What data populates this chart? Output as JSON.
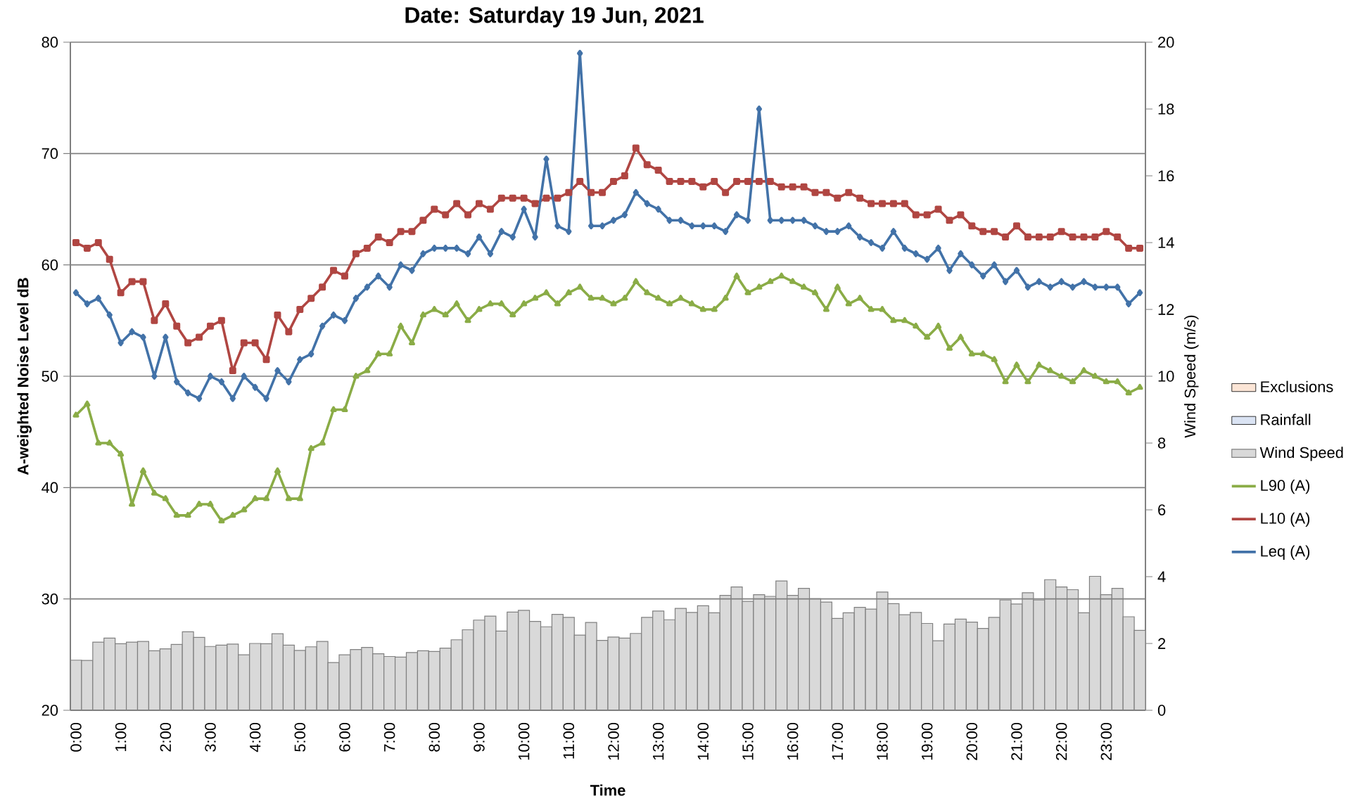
{
  "chart_data": {
    "type": "line",
    "title": "Date: Saturday 19 Jun, 2021",
    "xlabel": "Time",
    "ylabel": "A-weighted Noise Level dB",
    "y2label": "Wind Speed (m/s)",
    "categories": [
      "0:00",
      null,
      null,
      null,
      "1:00",
      null,
      null,
      null,
      "2:00",
      null,
      null,
      null,
      "3:00",
      null,
      null,
      null,
      "4:00",
      null,
      null,
      null,
      "5:00",
      null,
      null,
      null,
      "6:00",
      null,
      null,
      null,
      "7:00",
      null,
      null,
      null,
      "8:00",
      null,
      null,
      null,
      "9:00",
      null,
      null,
      null,
      "10:00",
      null,
      null,
      null,
      "11:00",
      null,
      null,
      null,
      "12:00",
      null,
      null,
      null,
      "13:00",
      null,
      null,
      null,
      "14:00",
      null,
      null,
      null,
      "15:00",
      null,
      null,
      null,
      "16:00",
      null,
      null,
      null,
      "17:00",
      null,
      null,
      null,
      "18:00",
      null,
      null,
      null,
      "19:00",
      null,
      null,
      null,
      "20:00",
      null,
      null,
      null,
      "21:00",
      null,
      null,
      null,
      "22:00",
      null,
      null,
      null,
      "23:00",
      null,
      null,
      null
    ],
    "ylim": [
      20,
      80
    ],
    "yticks": [
      20,
      30,
      40,
      50,
      60,
      70,
      80
    ],
    "y2lim": [
      0,
      20
    ],
    "y2ticks": [
      0,
      2,
      4,
      6,
      8,
      10,
      12,
      14,
      16,
      18,
      20
    ],
    "grid": "y",
    "legend": "right",
    "line_style": "solid",
    "series": [
      {
        "name": "Exclusions",
        "type": "area",
        "axis": "y2",
        "color": "#fbe5d6",
        "values": [
          null,
          null,
          null,
          null,
          null,
          null,
          null,
          null,
          null,
          null,
          null,
          null,
          null,
          null,
          null,
          null,
          null,
          null,
          null,
          null,
          null,
          null,
          null,
          null,
          null,
          null,
          null,
          null,
          null,
          null,
          null,
          null,
          null,
          null,
          null,
          null,
          null,
          null,
          null,
          null,
          null,
          null,
          null,
          null,
          null,
          null,
          null,
          null,
          null,
          null,
          null,
          null,
          null,
          null,
          null,
          null,
          null,
          null,
          null,
          null,
          null,
          null,
          null,
          null,
          null,
          null,
          null,
          null,
          null,
          null,
          null,
          null,
          null,
          null,
          null,
          null,
          null,
          null,
          null,
          null,
          null,
          null,
          null,
          null,
          null,
          null,
          null,
          null,
          null,
          null,
          null,
          null,
          null,
          null,
          null,
          null
        ]
      },
      {
        "name": "Rainfall",
        "type": "area",
        "axis": "y2",
        "color": "#dae3f3",
        "values": [
          null,
          null,
          null,
          null,
          null,
          null,
          null,
          null,
          null,
          null,
          null,
          null,
          null,
          null,
          null,
          null,
          null,
          null,
          null,
          null,
          null,
          null,
          null,
          null,
          null,
          null,
          null,
          null,
          null,
          null,
          null,
          null,
          null,
          null,
          null,
          null,
          null,
          null,
          null,
          null,
          null,
          null,
          null,
          null,
          null,
          null,
          null,
          null,
          null,
          null,
          null,
          null,
          null,
          null,
          null,
          null,
          null,
          null,
          null,
          null,
          null,
          null,
          null,
          null,
          null,
          null,
          null,
          null,
          null,
          null,
          null,
          null,
          null,
          null,
          null,
          null,
          null,
          null,
          null,
          null,
          null,
          null,
          null,
          null,
          null,
          null,
          null,
          null,
          null,
          null,
          null,
          null,
          null,
          null,
          null,
          null
        ]
      },
      {
        "name": "Wind Speed",
        "type": "bar",
        "axis": "y2",
        "color": "#d9d9d9",
        "values": [
          1.5,
          1.49,
          2.04,
          2.16,
          1.99,
          2.04,
          2.06,
          1.78,
          1.84,
          1.97,
          2.35,
          2.18,
          1.91,
          1.95,
          1.98,
          1.66,
          2.0,
          1.99,
          2.29,
          1.95,
          1.79,
          1.9,
          2.06,
          1.43,
          1.66,
          1.82,
          1.88,
          1.69,
          1.61,
          1.59,
          1.73,
          1.78,
          1.76,
          1.86,
          2.11,
          2.41,
          2.7,
          2.82,
          2.37,
          2.94,
          2.99,
          2.66,
          2.5,
          2.87,
          2.78,
          2.25,
          2.63,
          2.09,
          2.19,
          2.16,
          2.3,
          2.78,
          2.97,
          2.71,
          3.05,
          2.93,
          3.13,
          2.92,
          3.44,
          3.69,
          3.26,
          3.46,
          3.41,
          3.87,
          3.44,
          3.65,
          3.34,
          3.24,
          2.75,
          2.92,
          3.08,
          3.03,
          3.54,
          3.19,
          2.86,
          2.93,
          2.6,
          2.08,
          2.58,
          2.73,
          2.64,
          2.45,
          2.78,
          3.3,
          3.18,
          3.52,
          3.3,
          3.91,
          3.69,
          3.61,
          2.92,
          4.01,
          3.46,
          3.65,
          2.8,
          2.39
        ]
      },
      {
        "name": "L90 (A)",
        "marker": "triangle",
        "color": "#8aac46",
        "values": [
          46.5,
          47.5,
          44.0,
          44.0,
          43.0,
          38.5,
          41.5,
          39.5,
          39.0,
          37.5,
          37.5,
          38.5,
          38.5,
          37.0,
          37.5,
          38.0,
          39.0,
          39.0,
          41.5,
          39.0,
          39.0,
          43.5,
          44.0,
          47.0,
          47.0,
          50.0,
          50.5,
          52.0,
          52.0,
          54.5,
          53.0,
          55.5,
          56.0,
          55.5,
          56.5,
          55.0,
          56.0,
          56.5,
          56.5,
          55.5,
          56.5,
          57.0,
          57.5,
          56.5,
          57.5,
          58.0,
          57.0,
          57.0,
          56.5,
          57.0,
          58.5,
          57.5,
          57.0,
          56.5,
          57.0,
          56.5,
          56.0,
          56.0,
          57.0,
          59.0,
          57.5,
          58.0,
          58.5,
          59.0,
          58.5,
          58.0,
          57.5,
          56.0,
          58.0,
          56.5,
          57.0,
          56.0,
          56.0,
          55.0,
          55.0,
          54.5,
          53.5,
          54.5,
          52.5,
          53.5,
          52.0,
          52.0,
          51.5,
          49.5,
          51.0,
          49.5,
          51.0,
          50.5,
          50.0,
          49.5,
          50.5,
          50.0,
          49.5,
          49.5,
          48.5,
          49.0
        ]
      },
      {
        "name": "L10 (A)",
        "marker": "square",
        "color": "#b04642",
        "values": [
          62.0,
          61.5,
          62.0,
          60.5,
          57.5,
          58.5,
          58.5,
          55.0,
          56.5,
          54.5,
          53.0,
          53.5,
          54.5,
          55.0,
          50.5,
          53.0,
          53.0,
          51.5,
          55.5,
          54.0,
          56.0,
          57.0,
          58.0,
          59.5,
          59.0,
          61.0,
          61.5,
          62.5,
          62.0,
          63.0,
          63.0,
          64.0,
          65.0,
          64.5,
          65.5,
          64.5,
          65.5,
          65.0,
          66.0,
          66.0,
          66.0,
          65.5,
          66.0,
          66.0,
          66.5,
          67.5,
          66.5,
          66.5,
          67.5,
          68.0,
          70.5,
          69.0,
          68.5,
          67.5,
          67.5,
          67.5,
          67.0,
          67.5,
          66.5,
          67.5,
          67.5,
          67.5,
          67.5,
          67.0,
          67.0,
          67.0,
          66.5,
          66.5,
          66.0,
          66.5,
          66.0,
          65.5,
          65.5,
          65.5,
          65.5,
          64.5,
          64.5,
          65.0,
          64.0,
          64.5,
          63.5,
          63.0,
          63.0,
          62.5,
          63.5,
          62.5,
          62.5,
          62.5,
          63.0,
          62.5,
          62.5,
          62.5,
          63.0,
          62.5,
          61.5,
          61.5
        ]
      },
      {
        "name": "Leq (A)",
        "marker": "diamond",
        "color": "#4272a8",
        "values": [
          57.5,
          56.5,
          57.0,
          55.5,
          53.0,
          54.0,
          53.5,
          50.0,
          53.5,
          49.5,
          48.5,
          48.0,
          50.0,
          49.5,
          48.0,
          50.0,
          49.0,
          48.0,
          50.5,
          49.5,
          51.5,
          52.0,
          54.5,
          55.5,
          55.0,
          57.0,
          58.0,
          59.0,
          58.0,
          60.0,
          59.5,
          61.0,
          61.5,
          61.5,
          61.5,
          61.0,
          62.5,
          61.0,
          63.0,
          62.5,
          65.0,
          62.5,
          69.5,
          63.5,
          63.0,
          79.0,
          63.5,
          63.5,
          64.0,
          64.5,
          66.5,
          65.5,
          65.0,
          64.0,
          64.0,
          63.5,
          63.5,
          63.5,
          63.0,
          64.5,
          64.0,
          74.0,
          64.0,
          64.0,
          64.0,
          64.0,
          63.5,
          63.0,
          63.0,
          63.5,
          62.5,
          62.0,
          61.5,
          63.0,
          61.5,
          61.0,
          60.5,
          61.5,
          59.5,
          61.0,
          60.0,
          59.0,
          60.0,
          58.5,
          59.5,
          58.0,
          58.5,
          58.0,
          58.5,
          58.0,
          58.5,
          58.0,
          58.0,
          58.0,
          56.5,
          57.5
        ]
      }
    ]
  }
}
